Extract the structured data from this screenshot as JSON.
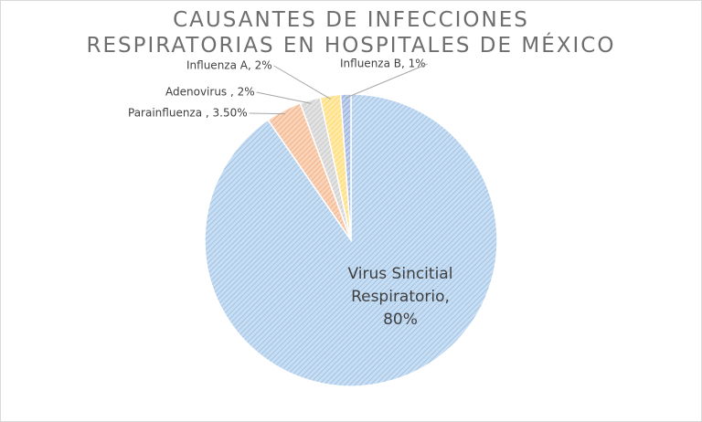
{
  "chart_data": {
    "type": "pie",
    "title": "CAUSANTES DE INFECCIONES RESPIRATORIAS EN HOSPITALES DE MÉXICO",
    "values": [
      80,
      3.5,
      2,
      2,
      1
    ],
    "value_labels": [
      "Virus Sincitial Respiratorio, 80%",
      "Parainfluenza , 3.50%",
      "Adenovirus , 2%",
      "Influenza A, 2%",
      "Influenza B, 1%"
    ],
    "colors": [
      "#9dc3e6",
      "#f4b183",
      "#c9c9c9",
      "#ffd966",
      "#8faadc"
    ]
  }
}
